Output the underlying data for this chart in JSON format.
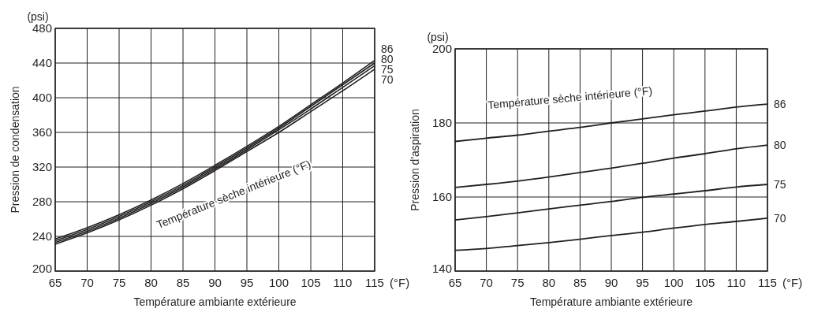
{
  "chart_data": [
    {
      "type": "line",
      "ylabel": "Pression de condensation",
      "xlabel": "Température ambiante extérieure",
      "annotations": [
        "(psi)",
        "(°F)",
        "Température sèche intérieure (°F)"
      ],
      "x": [
        65,
        70,
        75,
        80,
        85,
        90,
        95,
        100,
        105,
        110,
        115
      ],
      "xlim": [
        65,
        115
      ],
      "xticks": [
        65,
        70,
        75,
        80,
        85,
        90,
        95,
        100,
        105,
        110,
        115
      ],
      "ylim": [
        200,
        480
      ],
      "yticks": [
        200,
        240,
        280,
        320,
        360,
        400,
        440,
        480
      ],
      "grid": true,
      "legend": false,
      "series": [
        {
          "name": "86",
          "color": "#231f20",
          "values": [
            237,
            250,
            265,
            282,
            301,
            322,
            344,
            367,
            392,
            417,
            443
          ]
        },
        {
          "name": "80",
          "color": "#231f20",
          "values": [
            235,
            248,
            263,
            280,
            299,
            320,
            342,
            365,
            390,
            415,
            440
          ]
        },
        {
          "name": "75",
          "color": "#231f20",
          "values": [
            233,
            246,
            261,
            278,
            297,
            318,
            340,
            363,
            387,
            412,
            437
          ]
        },
        {
          "name": "70",
          "color": "#231f20",
          "values": [
            231,
            244,
            259,
            276,
            295,
            316,
            338,
            360,
            384,
            408,
            433
          ]
        }
      ]
    },
    {
      "type": "line",
      "ylabel": "Pression d'aspiration",
      "xlabel": "Température ambiante extérieure",
      "annotations": [
        "(psi)",
        "(°F)",
        "Température sèche intérieure (°F)"
      ],
      "x": [
        65,
        70,
        75,
        80,
        85,
        90,
        95,
        100,
        105,
        110,
        115
      ],
      "xlim": [
        65,
        115
      ],
      "xticks": [
        65,
        70,
        75,
        80,
        85,
        90,
        95,
        100,
        105,
        110,
        115
      ],
      "ylim": [
        140,
        200
      ],
      "yticks": [
        140,
        160,
        180,
        200
      ],
      "grid": true,
      "legend": false,
      "series": [
        {
          "name": "86",
          "color": "#231f20",
          "values": [
            175.0,
            175.9,
            176.7,
            177.8,
            178.8,
            180.0,
            181.1,
            182.2,
            183.2,
            184.3,
            185.1
          ]
        },
        {
          "name": "80",
          "color": "#231f20",
          "values": [
            162.6,
            163.4,
            164.3,
            165.4,
            166.6,
            167.8,
            169.1,
            170.5,
            171.7,
            173.0,
            174.0
          ]
        },
        {
          "name": "75",
          "color": "#231f20",
          "values": [
            153.8,
            154.7,
            155.7,
            156.8,
            157.8,
            158.8,
            159.9,
            160.8,
            161.7,
            162.7,
            163.4
          ]
        },
        {
          "name": "70",
          "color": "#231f20",
          "values": [
            145.6,
            146.1,
            146.9,
            147.7,
            148.6,
            149.6,
            150.5,
            151.6,
            152.6,
            153.4,
            154.3
          ]
        }
      ]
    }
  ]
}
